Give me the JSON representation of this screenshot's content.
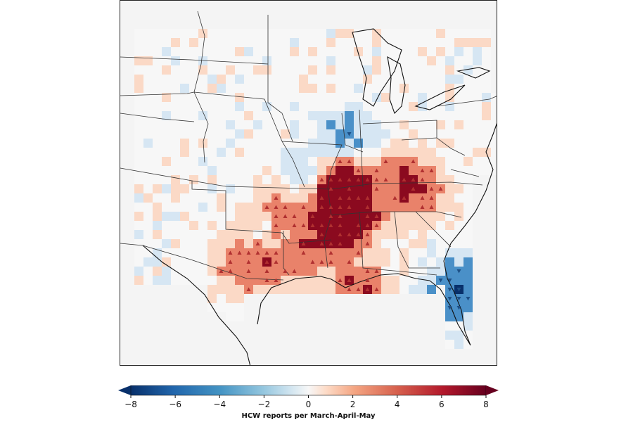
{
  "colorbar": {
    "label": "HCW reports per March-April-May",
    "ticks": [
      "−8",
      "−6",
      "−4",
      "−2",
      "0",
      "2",
      "4",
      "6",
      "8"
    ],
    "tick_values": [
      -8,
      -6,
      -4,
      -2,
      0,
      2,
      4,
      6,
      8
    ],
    "range": [
      -8,
      8
    ],
    "colormap": "RdBu_r",
    "extend": "both"
  },
  "colors": {
    "strong_negative": "#08306b",
    "negative": "#4a90c8",
    "weak_negative": "#d6e6f3",
    "neutral": "#f7f7f7",
    "weak_positive": "#fbd9c6",
    "positive": "#e9826a",
    "strong_positive": "#8b0a1f",
    "land_background": "#f4f4f4",
    "boundary": "#222222"
  },
  "markers": {
    "up_triangle": "significant increase",
    "down_triangle": "significant decrease"
  }
}
